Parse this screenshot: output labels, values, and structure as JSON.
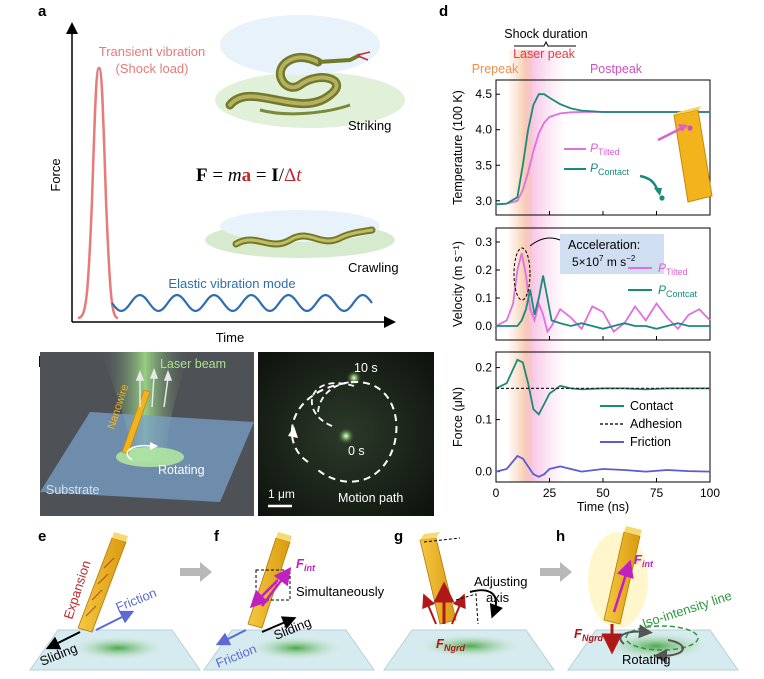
{
  "panels": {
    "a": {
      "letter": "a",
      "y_axis": "Force",
      "x_axis": "Time",
      "peak_label_1": "Transient vibration",
      "peak_label_2": "(Shock load)",
      "wave_label": "Elastic vibration mode",
      "snake_top_label": "Striking",
      "snake_bottom_label": "Crawling",
      "equation": {
        "F": "F",
        "eq1": " = ",
        "m": "m",
        "a": "a",
        "eq2": " = ",
        "I": "I",
        "slash": "/",
        "delta": "Δ",
        "t": "t"
      }
    },
    "b": {
      "letter": "b",
      "laser": "Laser beam",
      "nanowire": "Nanowire",
      "rotating": "Rotating",
      "substrate": "Substrate"
    },
    "c": {
      "letter": "c",
      "t_end": "10 s",
      "t_start": "0 s",
      "scale": "1 μm",
      "path": "Motion path"
    },
    "d": {
      "letter": "d",
      "shock_duration": "Shock duration",
      "laser_peak": "Laser peak",
      "prepeak": "Prepeak",
      "postpeak": "Postpeak",
      "acceleration_1": "Acceleration:",
      "acceleration_2": "5×10",
      "acceleration_exp": "7",
      "acceleration_unit": " m s",
      "acceleration_unit_exp": "−2",
      "x_label": "Time (ns)",
      "p_tilted": "P",
      "p_tilted_sub": "Tilted",
      "p_contact": "P",
      "p_contact_sub": "Contact",
      "p_contcat_sub": "Contcat",
      "legend_contact": "Contact",
      "legend_adhesion": "Adhesion",
      "legend_friction": "Friction"
    },
    "e": {
      "letter": "e",
      "expansion": "Expansion",
      "friction": "Friction",
      "sliding": "Sliding"
    },
    "f": {
      "letter": "f",
      "f_int": "F",
      "f_int_sub": "int",
      "simultaneously": "Simultaneously",
      "friction": "Friction",
      "sliding": "Sliding"
    },
    "g": {
      "letter": "g",
      "adjusting": "Adjusting",
      "axis": "axis",
      "f_ngrd": "F",
      "f_ngrd_sub": "Ngrd"
    },
    "h": {
      "letter": "h",
      "f_int": "F",
      "f_int_sub": "int",
      "iso_line": "Iso-intensity line",
      "f_ngrd": "F",
      "f_ngrd_sub": "Ngrd",
      "rotating": "Rotating"
    }
  },
  "chart_data": [
    {
      "type": "line",
      "title": "",
      "x": [
        0,
        5,
        10,
        12.5,
        15,
        17.5,
        20,
        22.5,
        25,
        30,
        35,
        40,
        50,
        60,
        70,
        80,
        90,
        100
      ],
      "xlabel": "Time (ns)",
      "ylabel": "Temperature (100 K)",
      "xlim": [
        0,
        100
      ],
      "ylim": [
        2.8,
        4.7
      ],
      "yticks": [
        3.0,
        3.5,
        4.0,
        4.5
      ],
      "series": [
        {
          "name": "P_Tilted",
          "color": "#e070e0",
          "values": [
            2.95,
            2.96,
            3.0,
            3.15,
            3.4,
            3.7,
            3.95,
            4.1,
            4.18,
            4.23,
            4.245,
            4.25,
            4.25,
            4.25,
            4.25,
            4.25,
            4.25,
            4.25
          ]
        },
        {
          "name": "P_Contact",
          "color": "#1a8a7a",
          "values": [
            2.95,
            2.96,
            3.05,
            3.5,
            4.0,
            4.35,
            4.5,
            4.5,
            4.45,
            4.36,
            4.3,
            4.27,
            4.25,
            4.25,
            4.25,
            4.25,
            4.25,
            4.25
          ]
        }
      ]
    },
    {
      "type": "line",
      "title": "",
      "x": [
        0,
        5,
        8,
        10,
        12,
        14,
        16,
        18,
        20,
        22,
        24,
        26,
        30,
        35,
        40,
        45,
        50,
        55,
        60,
        65,
        70,
        75,
        80,
        85,
        90,
        95,
        100
      ],
      "xlabel": "Time (ns)",
      "ylabel": "Velocity (m s⁻¹)",
      "xlim": [
        0,
        100
      ],
      "ylim": [
        -0.05,
        0.35
      ],
      "yticks": [
        0.0,
        0.1,
        0.2,
        0.3
      ],
      "series": [
        {
          "name": "P_Tilted",
          "color": "#e070e0",
          "values": [
            0.0,
            0.02,
            0.08,
            0.2,
            0.26,
            0.18,
            0.06,
            0.02,
            0.08,
            0.04,
            -0.02,
            0.0,
            0.06,
            0.03,
            -0.01,
            0.07,
            0.05,
            -0.02,
            0.01,
            0.07,
            0.02,
            0.08,
            0.03,
            -0.01,
            0.04,
            0.06,
            0.02
          ]
        },
        {
          "name": "P_Contcat",
          "color": "#1a8a7a",
          "values": [
            0.0,
            0.0,
            0.0,
            0.0,
            0.02,
            0.06,
            0.13,
            0.04,
            0.1,
            0.18,
            0.1,
            0.02,
            0.01,
            0.0,
            0.01,
            0.0,
            -0.01,
            0.0,
            0.01,
            0.0,
            0.0,
            -0.01,
            0.0,
            0.01,
            0.0,
            0.0,
            0.0
          ]
        }
      ]
    },
    {
      "type": "line",
      "title": "",
      "x": [
        0,
        5,
        10,
        12.5,
        15,
        17.5,
        20,
        22.5,
        25,
        30,
        35,
        40,
        50,
        60,
        70,
        80,
        90,
        100
      ],
      "xlabel": "Time (ns)",
      "ylabel": "Force (μN)",
      "xlim": [
        0,
        100
      ],
      "ylim": [
        -0.02,
        0.23
      ],
      "yticks": [
        0.0,
        0.1,
        0.2
      ],
      "xticks": [
        0,
        25,
        50,
        75,
        100
      ],
      "series": [
        {
          "name": "Contact",
          "color": "#1a8a7a",
          "values": [
            0.16,
            0.17,
            0.215,
            0.21,
            0.17,
            0.12,
            0.11,
            0.13,
            0.15,
            0.165,
            0.16,
            0.158,
            0.16,
            0.16,
            0.158,
            0.16,
            0.16,
            0.16
          ]
        },
        {
          "name": "Adhesion",
          "color": "#222222",
          "values": [
            0.16,
            0.16,
            0.16,
            0.16,
            0.16,
            0.16,
            0.16,
            0.16,
            0.16,
            0.16,
            0.16,
            0.16,
            0.16,
            0.16,
            0.16,
            0.16,
            0.16,
            0.16
          ]
        },
        {
          "name": "Friction",
          "color": "#5b5bd6",
          "values": [
            0.0,
            0.005,
            0.03,
            0.025,
            0.01,
            -0.005,
            -0.01,
            -0.005,
            0.005,
            0.01,
            0.005,
            0.0,
            0.005,
            0.003,
            0.0,
            0.003,
            0.001,
            0.0
          ]
        }
      ]
    }
  ]
}
